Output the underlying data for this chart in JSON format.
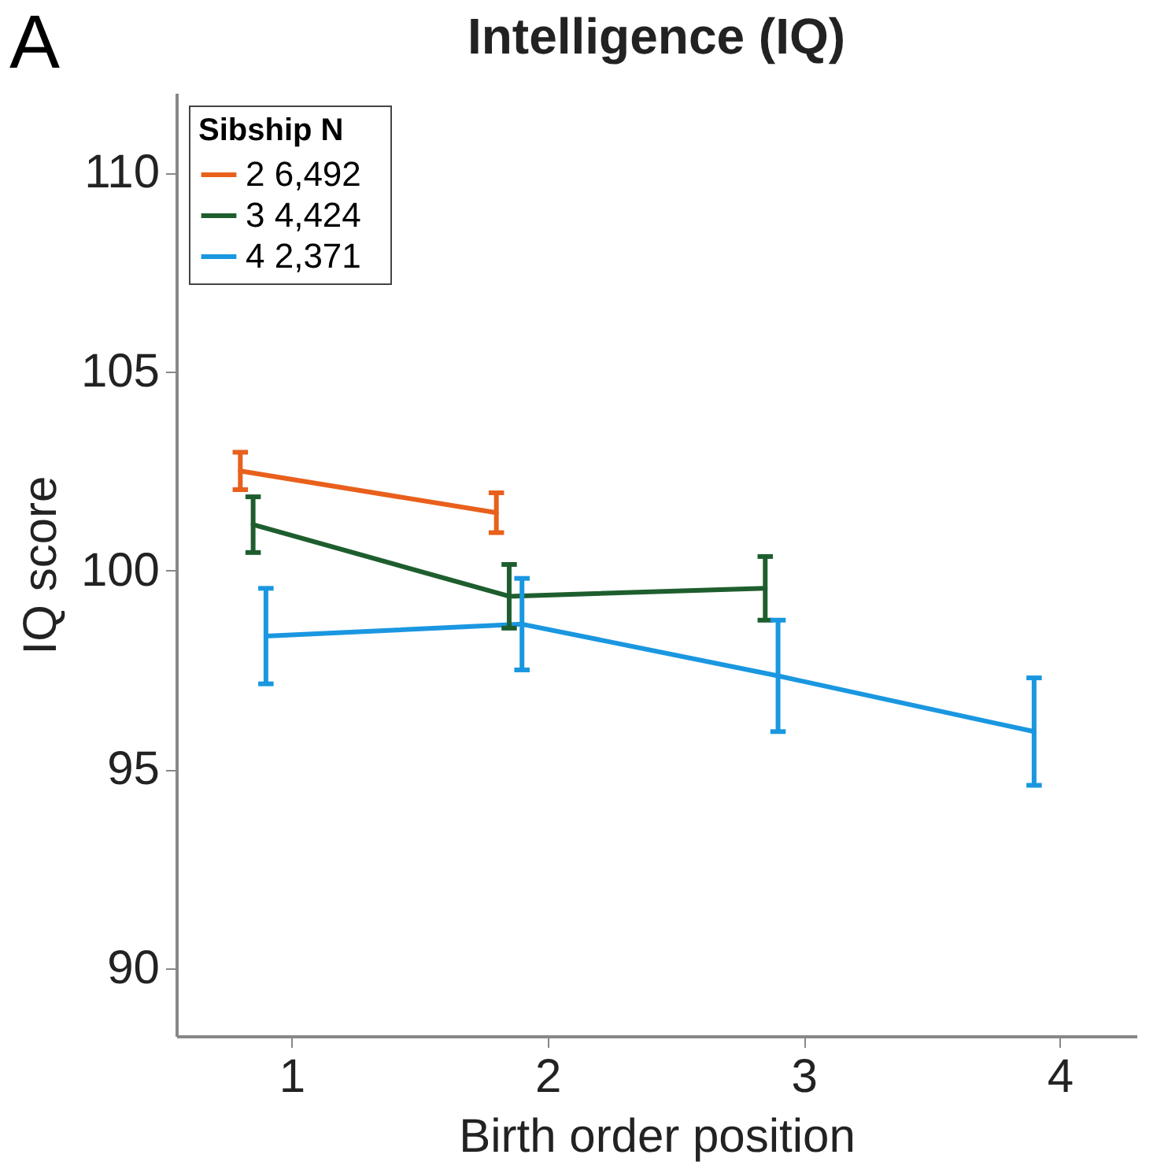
{
  "chart_data": {
    "type": "line",
    "title": "Intelligence (IQ)",
    "annotations": [
      "A"
    ],
    "xlabel": "Birth order position",
    "ylabel": "IQ score",
    "legend_title": "Sibship   N",
    "xlim": [
      0.55,
      4.3
    ],
    "xticks": [
      1,
      2,
      3,
      4
    ],
    "ylim": [
      88.3,
      112
    ],
    "yticks": [
      90,
      95,
      100,
      105,
      110
    ],
    "grid": false,
    "legend": "top left",
    "marker": "none",
    "line_style": "solid",
    "series": [
      {
        "name": "2   6,492",
        "color": "#e8601c",
        "x": [
          0.8,
          1.8
        ],
        "values": [
          102.5,
          101.45
        ],
        "errors": [
          0.47,
          0.5
        ]
      },
      {
        "name": "3   4,424",
        "color": "#1e5e2e",
        "x": [
          0.85,
          1.85,
          2.85
        ],
        "values": [
          101.15,
          99.35,
          99.55
        ],
        "errors": [
          0.7,
          0.8,
          0.8
        ]
      },
      {
        "name": "4   2,371",
        "color": "#1a97e0",
        "x": [
          0.9,
          1.9,
          2.9,
          3.9
        ],
        "values": [
          98.35,
          98.65,
          97.35,
          95.95
        ],
        "errors": [
          1.2,
          1.15,
          1.4,
          1.35
        ]
      }
    ]
  }
}
